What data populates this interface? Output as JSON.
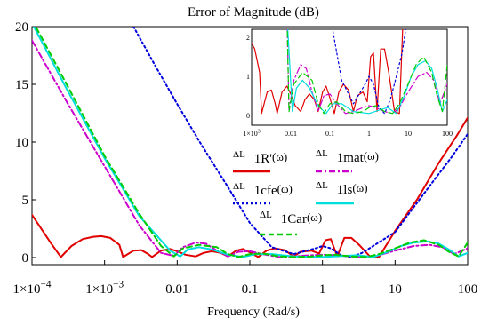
{
  "chart_data": [
    {
      "type": "line",
      "title": "Error of Magnitude (dB)",
      "xlabel": "Frequency (Rad/s)",
      "ylabel": "",
      "xscale": "log",
      "xlim": [
        0.0001,
        100
      ],
      "ylim": [
        0,
        20
      ],
      "x_tick_labels": [
        {
          "mant": "1×10",
          "exp": "−4"
        },
        {
          "mant": "1×10",
          "exp": "−3"
        },
        {
          "mant": "0.01",
          "exp": ""
        },
        {
          "mant": "0.1",
          "exp": ""
        },
        {
          "mant": "1",
          "exp": ""
        },
        {
          "mant": "10",
          "exp": ""
        },
        {
          "mant": "100",
          "exp": ""
        }
      ],
      "y_tick_labels": [
        "0",
        "5",
        "10",
        "15",
        "20"
      ],
      "grid": false,
      "legend_placement": "center-right",
      "series": [
        {
          "name": "1R'",
          "color": "#e00000",
          "dash": "solid",
          "x": [
            0.0001,
            0.00018,
            0.00025,
            0.00035,
            0.0005,
            0.0007,
            0.0009,
            0.0012,
            0.0016,
            0.0018,
            0.0025,
            0.0032,
            0.004,
            0.0045,
            0.006,
            0.008,
            0.01,
            0.013,
            0.018,
            0.023,
            0.03,
            0.04,
            0.05,
            0.065,
            0.08,
            0.1,
            0.13,
            0.17,
            0.22,
            0.3,
            0.4,
            0.5,
            0.7,
            0.9,
            1.1,
            1.3,
            1.6,
            2,
            2.5,
            3.2,
            4.5,
            6,
            10,
            20,
            40,
            70,
            100
          ],
          "y": [
            3.7,
            1.3,
            0.05,
            1.0,
            1.6,
            1.8,
            1.85,
            1.7,
            1.1,
            0.05,
            0.6,
            0.65,
            0.3,
            0.05,
            0.6,
            0.75,
            0.55,
            0.25,
            0.1,
            0.4,
            0.55,
            0.4,
            0.1,
            0.6,
            0.75,
            0.45,
            0.05,
            0.6,
            0.8,
            0.65,
            0.1,
            0.5,
            0.6,
            0.35,
            1.5,
            1.6,
            0.1,
            1.7,
            1.7,
            1.1,
            0.1,
            0.05,
            2.3,
            5.0,
            8.2,
            10.5,
            12.1
          ]
        },
        {
          "name": "1mat",
          "color": "#cc00cc",
          "dash": "dashdot",
          "x": [
            0.0001,
            0.0003,
            0.001,
            0.003,
            0.006,
            0.009,
            0.012,
            0.018,
            0.025,
            0.035,
            0.05,
            0.07,
            0.1,
            0.15,
            0.25,
            0.4,
            0.7,
            1,
            1.5,
            2.5,
            4,
            6,
            10,
            18,
            30,
            45,
            65,
            100
          ],
          "y": [
            18.8,
            13.5,
            7.9,
            2.8,
            0.4,
            0.15,
            0.9,
            1.3,
            1.2,
            0.6,
            0.1,
            0.5,
            0.55,
            0.3,
            0.05,
            0.1,
            0.2,
            0.25,
            0.2,
            0.1,
            0.05,
            0.2,
            0.6,
            1.0,
            1.1,
            0.9,
            0.3,
            0.8
          ]
        },
        {
          "name": "1cfe",
          "color": "#0000dd",
          "dash": "dotted",
          "x": [
            0.0025,
            0.005,
            0.01,
            0.02,
            0.05,
            0.1,
            0.2,
            0.4,
            0.8,
            1,
            1.3,
            1.8,
            2.5,
            3.5,
            5,
            10,
            30,
            60,
            100
          ],
          "y": [
            20,
            16.6,
            13.3,
            10.1,
            6.1,
            3.0,
            0.9,
            0.3,
            0.8,
            1.0,
            0.8,
            0.2,
            0.05,
            0.4,
            1.0,
            2.2,
            6.2,
            8.7,
            10.7
          ]
        },
        {
          "name": "1ls",
          "color": "#00dddd",
          "dash": "solid",
          "x": [
            0.0001,
            0.0003,
            0.001,
            0.003,
            0.008,
            0.011,
            0.014,
            0.02,
            0.03,
            0.05,
            0.08,
            0.12,
            0.2,
            0.4,
            1,
            2,
            3,
            5,
            8,
            12,
            18,
            28,
            40,
            55,
            75,
            100
          ],
          "y": [
            20.3,
            14.6,
            8.6,
            3.6,
            0.6,
            0.1,
            0.7,
            0.9,
            0.7,
            0.25,
            0.05,
            0.3,
            0.3,
            0.1,
            0.05,
            0.15,
            0.2,
            0.05,
            0.5,
            1.0,
            1.3,
            1.4,
            1.2,
            0.7,
            0.1,
            0.4
          ]
        },
        {
          "name": "1Car",
          "color": "#00cc00",
          "dash": "dashed",
          "x": [
            0.0001,
            0.0003,
            0.001,
            0.003,
            0.006,
            0.009,
            0.012,
            0.02,
            0.035,
            0.05,
            0.07,
            0.1,
            0.15,
            0.25,
            0.4,
            0.7,
            1,
            1.5,
            2.5,
            4,
            6,
            10,
            16,
            25,
            40,
            55,
            75,
            100
          ],
          "y": [
            20.6,
            15.0,
            8.8,
            3.8,
            1.0,
            0.1,
            0.8,
            1.1,
            0.9,
            0.3,
            0.05,
            0.3,
            0.35,
            0.1,
            0.05,
            0.1,
            0.2,
            0.25,
            0.1,
            0.05,
            0.3,
            0.8,
            1.3,
            1.5,
            1.1,
            0.5,
            0.1,
            1.3
          ]
        }
      ],
      "legend_entries": [
        {
          "prefix": "ΔL",
          "sub": "1R'",
          "suffix": "(ω)",
          "series": 0
        },
        {
          "prefix": "ΔL",
          "sub": "1mat",
          "suffix": "(ω)",
          "series": 1
        },
        {
          "prefix": "ΔL",
          "sub": "1cfe",
          "suffix": "(ω)",
          "series": 2
        },
        {
          "prefix": "ΔL",
          "sub": "1ls",
          "suffix": "(ω)",
          "series": 3
        },
        {
          "prefix": "ΔL",
          "sub": "1Car",
          "suffix": "(ω)",
          "series": 4
        }
      ]
    },
    {
      "type": "line",
      "title": "",
      "xscale": "log",
      "xlim": [
        0.001,
        100
      ],
      "ylim": [
        0,
        2.6
      ],
      "x_tick_labels": [
        {
          "mant": "1×10",
          "exp": "3"
        },
        {
          "mant": "0.01",
          "exp": ""
        },
        {
          "mant": "0.1",
          "exp": ""
        },
        {
          "mant": "1",
          "exp": ""
        },
        {
          "mant": "10",
          "exp": ""
        },
        {
          "mant": "100",
          "exp": ""
        }
      ],
      "y_tick_labels": [
        "0",
        "1",
        "2"
      ],
      "series": [
        {
          "name": "",
          "color": "#e00000",
          "dash": "solid",
          "x": [
            0.001,
            0.0012,
            0.0016,
            0.0018,
            0.0025,
            0.0032,
            0.004,
            0.0045,
            0.006,
            0.008,
            0.01,
            0.013,
            0.018,
            0.023,
            0.03,
            0.04,
            0.05,
            0.065,
            0.08,
            0.1,
            0.13,
            0.17,
            0.22,
            0.3,
            0.4,
            0.5,
            0.7,
            0.9,
            1.1,
            1.3,
            1.6,
            2,
            2.5,
            3.2,
            4.5,
            6,
            7.5
          ],
          "y": [
            1.85,
            1.7,
            1.1,
            0.05,
            0.6,
            0.65,
            0.3,
            0.05,
            0.6,
            0.75,
            0.55,
            0.25,
            0.1,
            0.4,
            0.55,
            0.4,
            0.1,
            0.6,
            0.75,
            0.45,
            0.05,
            0.6,
            0.8,
            0.65,
            0.1,
            0.5,
            0.6,
            0.35,
            1.5,
            1.6,
            0.1,
            1.7,
            1.7,
            1.1,
            0.1,
            0.05,
            2.6
          ]
        },
        {
          "name": "",
          "color": "#cc00cc",
          "dash": "dashdot",
          "x": [
            0.008,
            0.009,
            0.012,
            0.018,
            0.025,
            0.035,
            0.05,
            0.07,
            0.1,
            0.15,
            0.25,
            0.4,
            0.7,
            1,
            1.5,
            2.5,
            4,
            6,
            10,
            18,
            30,
            45,
            65,
            100
          ],
          "y": [
            2.6,
            0.15,
            0.9,
            1.3,
            1.2,
            0.6,
            0.1,
            0.5,
            0.55,
            0.3,
            0.05,
            0.1,
            0.2,
            0.25,
            0.2,
            0.1,
            0.05,
            0.2,
            0.6,
            1.0,
            1.1,
            0.9,
            0.3,
            0.8
          ]
        },
        {
          "name": "",
          "color": "#0000dd",
          "dash": "dotted",
          "x": [
            0.1,
            0.2,
            0.4,
            0.8,
            1,
            1.3,
            1.8,
            2.5,
            3.5,
            5,
            7,
            10
          ],
          "y": [
            2.6,
            0.9,
            0.3,
            0.8,
            1.0,
            0.8,
            0.2,
            0.05,
            0.4,
            1.0,
            1.6,
            2.6
          ]
        },
        {
          "name": "",
          "color": "#00dddd",
          "dash": "solid",
          "x": [
            0.008,
            0.011,
            0.014,
            0.02,
            0.03,
            0.05,
            0.08,
            0.12,
            0.2,
            0.4,
            1,
            2,
            3,
            5,
            8,
            12,
            18,
            28,
            40,
            55,
            75,
            100
          ],
          "y": [
            2.6,
            0.1,
            0.7,
            0.9,
            0.7,
            0.25,
            0.05,
            0.3,
            0.3,
            0.1,
            0.05,
            0.15,
            0.2,
            0.05,
            0.5,
            1.0,
            1.3,
            1.4,
            1.2,
            0.7,
            0.1,
            0.4
          ]
        },
        {
          "name": "",
          "color": "#00cc00",
          "dash": "dashed",
          "x": [
            0.008,
            0.009,
            0.012,
            0.02,
            0.035,
            0.05,
            0.07,
            0.1,
            0.15,
            0.25,
            0.4,
            0.7,
            1,
            1.5,
            2.5,
            4,
            6,
            10,
            16,
            25,
            40,
            55,
            75,
            100
          ],
          "y": [
            2.6,
            0.1,
            0.8,
            1.1,
            0.9,
            0.3,
            0.05,
            0.3,
            0.35,
            0.1,
            0.05,
            0.1,
            0.2,
            0.25,
            0.1,
            0.05,
            0.3,
            0.8,
            1.3,
            1.5,
            1.1,
            0.5,
            0.1,
            1.3
          ]
        }
      ]
    }
  ]
}
